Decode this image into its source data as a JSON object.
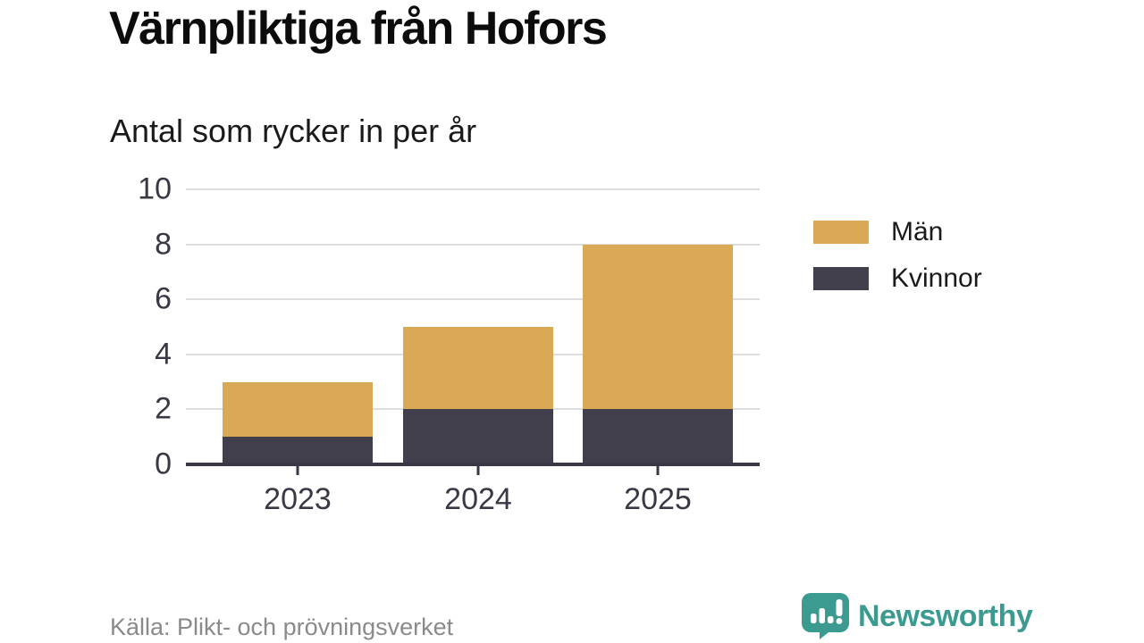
{
  "header": {
    "title": "Värnpliktiga från Hofors",
    "subtitle": "Antal som rycker in per år"
  },
  "chart_data": {
    "type": "bar",
    "stacked": true,
    "title": "Värnpliktiga från Hofors",
    "subtitle": "Antal som rycker in per år",
    "categories": [
      "2023",
      "2024",
      "2025"
    ],
    "series": [
      {
        "name": "Män",
        "color": "#DAA955",
        "values": [
          2,
          3,
          6
        ]
      },
      {
        "name": "Kvinnor",
        "color": "#413F4C",
        "values": [
          1,
          2,
          2
        ]
      }
    ],
    "stack_order_bottom_to_top": [
      "Kvinnor",
      "Män"
    ],
    "totals": [
      3,
      5,
      8
    ],
    "xlabel": "",
    "ylabel": "",
    "ylim": [
      0,
      10
    ],
    "yticks": [
      0,
      2,
      4,
      6,
      8,
      10
    ],
    "grid": "horizontal-light-gray",
    "legend_position": "right"
  },
  "footer": {
    "source": "Källa: Plikt- och prövningsverket",
    "brand": "Newsworthy"
  },
  "colors": {
    "men_gold": "#DAA955",
    "women_navy": "#413F4C",
    "brand_teal": "#3B9B90",
    "grid": "#DDDDDD",
    "axis": "#3A3844",
    "source_gray": "#8A8A8A"
  }
}
